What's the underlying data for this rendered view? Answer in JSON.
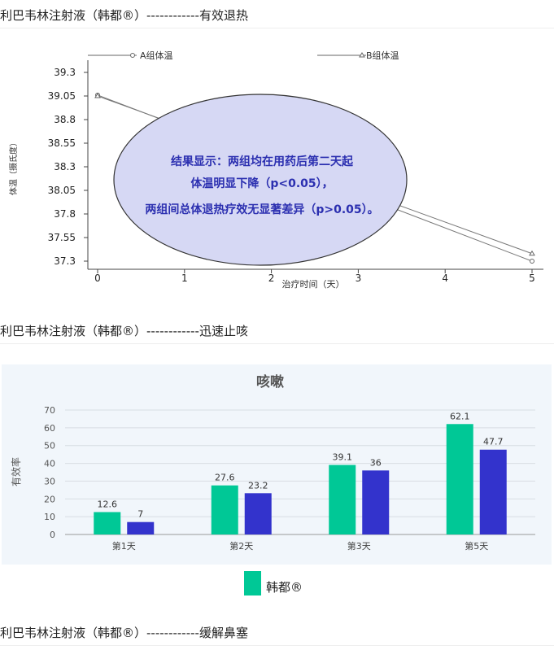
{
  "headings": {
    "h1": "利巴韦林注射液（韩都®）------------有效退热",
    "h2": "利巴韦林注射液（韩都®）------------迅速止咳",
    "h3": "利巴韦林注射液（韩都®）------------缓解鼻塞"
  },
  "colors": {
    "ellipse_fill": "#d6d8f4",
    "ellipse_text": "#2b2fb0",
    "series_a": "#00c896",
    "series_b": "#3333cc"
  },
  "chart_data": [
    {
      "type": "line",
      "xlabel": "治疗时间（天）",
      "ylabel": "体温（摄氏度）",
      "x_ticks": [
        0,
        1,
        2,
        3,
        4,
        5
      ],
      "y_ticks": [
        "37.3",
        "37.55",
        "37.8",
        "38.05",
        "38.3",
        "38.55",
        "38.8",
        "39.05",
        "39.3"
      ],
      "xlim": [
        0,
        5
      ],
      "ylim": [
        37.3,
        39.3
      ],
      "series": [
        {
          "name": "A组体温",
          "marker": "circle",
          "x": [
            0,
            5
          ],
          "y": [
            39.06,
            37.3
          ]
        },
        {
          "name": "B组体温",
          "marker": "triangle",
          "x": [
            0,
            5
          ],
          "y": [
            39.05,
            37.38
          ]
        }
      ],
      "annotation": {
        "line1": "结果显示：两组均在用药后第二天起",
        "line2": "体温明显下降（p<0.05），",
        "line3": "两组间总体退热疗效无显著差异（p>0.05）。"
      }
    },
    {
      "type": "bar",
      "title": "咳嗽",
      "ylabel": "有效率",
      "categories": [
        "第1天",
        "第2天",
        "第3天",
        "第5天"
      ],
      "ylim": [
        0,
        70
      ],
      "y_ticks": [
        0,
        10,
        20,
        30,
        40,
        50,
        60,
        70
      ],
      "series": [
        {
          "name": "韩都®",
          "values": [
            12.6,
            27.6,
            39.1,
            62.1
          ]
        },
        {
          "values": [
            7,
            23.2,
            36,
            47.7
          ]
        }
      ],
      "value_labels": [
        [
          "12.6",
          "27.6",
          "39.1",
          "62.1"
        ],
        [
          "7",
          "23.2",
          "36",
          "47.7"
        ]
      ],
      "legend": {
        "label": "韩都®",
        "position": "bottom"
      }
    }
  ]
}
